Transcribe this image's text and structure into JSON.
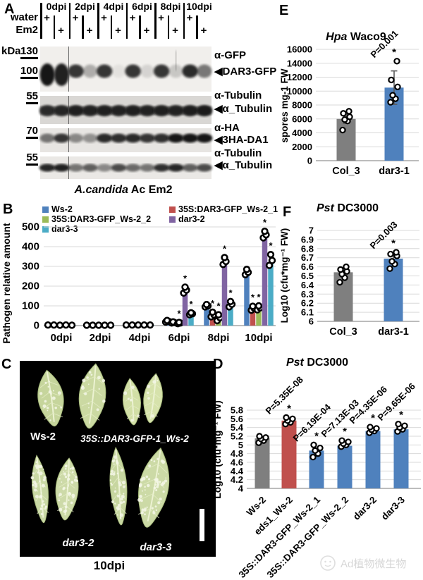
{
  "panelA": {
    "label": "A",
    "rows": [
      "water",
      "Em2"
    ],
    "plus_glyph": "+",
    "kda_unit": "kDa",
    "arrow_glyph": "◀",
    "timepoints": [
      "0dpi",
      "2dpi",
      "4dpi",
      "6dpi",
      "8dpi",
      "10dpi"
    ],
    "blots": [
      {
        "antibody": "α-GFP",
        "band": "DAR3-GFP",
        "kda": [
          "130",
          "100"
        ],
        "lanes": [
          1,
          0.95,
          0.85,
          0.3,
          0.85,
          0.06,
          0.85,
          0.12,
          0.85,
          0.18,
          0.9,
          0.55
        ]
      },
      {
        "antibody": "α-Tubulin",
        "band": "α_Tubulin",
        "kda": [
          "55"
        ],
        "lanes": [
          0.8,
          0.85,
          0.9,
          0.88,
          0.9,
          0.88,
          0.9,
          0.88,
          0.9,
          0.88,
          0.92,
          0.95
        ]
      },
      {
        "antibody": "α-HA",
        "band": "3HA-DA1",
        "kda": [
          "70"
        ],
        "lanes": [
          0.55,
          0.85,
          0.45,
          0.4,
          0.9,
          0.88,
          0.9,
          0.85,
          0.88,
          1,
          1,
          1
        ]
      },
      {
        "antibody": "α-Tubulin",
        "band": "α_Tubulin",
        "kda": [
          "55"
        ],
        "lanes": [
          0.92,
          0.95,
          0.55,
          0.65,
          0.45,
          0.75,
          0.6,
          0.55,
          0.88,
          0.92,
          0.65,
          0.75
        ]
      }
    ]
  },
  "panelB": {
    "label": "B",
    "title_italic": "A.candida",
    "title_rest": " Ac Em2"
  },
  "panelC": {
    "label": "C",
    "groups": [
      {
        "name": "Ws-2"
      },
      {
        "name": "35S::DAR3-GFP-1_Ws-2"
      },
      {
        "name": "dar3-2"
      },
      {
        "name": "dar3-3"
      }
    ],
    "timepoint": "10dpi"
  },
  "panelD": {
    "label": "D",
    "title_italic": "Pst",
    "title_rest": " DC3000"
  },
  "panelE": {
    "label": "E",
    "title_italic": "Hpa",
    "title_rest": " Waco9"
  },
  "panelF": {
    "label": "F",
    "title_italic": "Pst",
    "title_rest": " DC3000"
  },
  "watermark": {
    "text": "Ad植物微生物"
  },
  "colors": {
    "ws2_blue": "#4F81BD",
    "red": "#C0504D",
    "green": "#9BBB59",
    "purple": "#8064A2",
    "teal": "#4BACC6",
    "gray": "#7F7F7F"
  },
  "chart_data": [
    {
      "id": "B",
      "type": "bar",
      "title": "A.candida Ac Em2",
      "ylabel": "Pathogen relative amount",
      "ylim": [
        0,
        500
      ],
      "ytick_step": 100,
      "grid": true,
      "legend_position": "top",
      "categories": [
        "0dpi",
        "2dpi",
        "4dpi",
        "6dpi",
        "8dpi",
        "10dpi"
      ],
      "series": [
        {
          "name": "Ws-2",
          "color": "#4F81BD",
          "values": [
            3,
            2,
            3,
            20,
            97,
            268
          ],
          "points": [
            [
              3
            ],
            [
              2
            ],
            [
              3
            ],
            [
              18,
              22,
              26
            ],
            [
              95,
              100,
              107
            ],
            [
              258,
              270,
              285
            ]
          ],
          "sig": [
            false,
            false,
            false,
            false,
            false,
            false
          ]
        },
        {
          "name": "35S:DAR3-GFP_Ws-2_1",
          "color": "#C0504D",
          "values": [
            3,
            2,
            3,
            15,
            54,
            85
          ],
          "points": [
            [
              3
            ],
            [
              2
            ],
            [
              3
            ],
            [
              13,
              16,
              19
            ],
            [
              45,
              55,
              68
            ],
            [
              78,
              88,
              98
            ]
          ],
          "sig": [
            false,
            false,
            false,
            false,
            true,
            true
          ]
        },
        {
          "name": "35S:DAR3-GFP_Ws-2_2",
          "color": "#9BBB59",
          "values": [
            2,
            2,
            3,
            12,
            35,
            85
          ],
          "points": [
            [
              2
            ],
            [
              2
            ],
            [
              3
            ],
            [
              10,
              13,
              16
            ],
            [
              25,
              40,
              55
            ],
            [
              80,
              90,
              100
            ]
          ],
          "sig": [
            false,
            false,
            false,
            true,
            true,
            true
          ]
        },
        {
          "name": "dar3-2",
          "color": "#8064A2",
          "values": [
            3,
            2,
            3,
            185,
            310,
            455
          ],
          "points": [
            [
              3
            ],
            [
              2
            ],
            [
              3
            ],
            [
              165,
              180,
              195
            ],
            [
              310,
              325,
              345
            ],
            [
              445,
              460,
              478
            ]
          ],
          "sig": [
            false,
            false,
            false,
            true,
            true,
            true
          ]
        },
        {
          "name": "dar3-3",
          "color": "#4BACC6",
          "values": [
            2,
            2,
            3,
            57,
            100,
            313
          ],
          "points": [
            [
              2
            ],
            [
              2
            ],
            [
              3
            ],
            [
              55,
              60,
              65
            ],
            [
              95,
              108,
              122
            ],
            [
              305,
              330,
              360
            ]
          ],
          "sig": [
            false,
            false,
            false,
            true,
            true,
            true
          ]
        }
      ]
    },
    {
      "id": "D",
      "type": "bar",
      "title": "Pst DC3000",
      "ylabel": "Log10 (cfu*mg⁻¹ FW)",
      "ylim": [
        4,
        5.8
      ],
      "ytick_step": 0.2,
      "grid": true,
      "categories": [
        "Ws-2",
        "eds1_Ws-2",
        "35S::DAR3-GFP_Ws-2_1",
        "35S::DAR3-GFP_Ws-2_2",
        "dar3-2",
        "dar3-3"
      ],
      "values": [
        5.15,
        5.56,
        4.87,
        4.98,
        5.32,
        5.36
      ],
      "colors": [
        "#7F7F7F",
        "#C0504D",
        "#4F81BD",
        "#4F81BD",
        "#4F81BD",
        "#4F81BD"
      ],
      "points": [
        [
          5.05,
          5.1,
          5.14,
          5.17,
          5.2
        ],
        [
          5.48,
          5.52,
          5.56,
          5.6,
          5.63
        ],
        [
          4.72,
          4.8,
          4.87,
          4.93,
          5.0
        ],
        [
          4.96,
          5.0,
          5.03,
          5.07,
          5.1
        ],
        [
          5.28,
          5.32,
          5.35,
          5.38,
          5.41
        ],
        [
          5.31,
          5.36,
          5.4,
          5.44,
          5.48
        ]
      ],
      "p_values": [
        null,
        "P=5.35E-08",
        "P=6.19E-04",
        "P=7.13E-03",
        "P=4.35E-06",
        "P=9.65E-06"
      ],
      "sig": [
        false,
        true,
        true,
        true,
        true,
        true
      ]
    },
    {
      "id": "E",
      "type": "bar",
      "title": "Hpa Waco9",
      "ylabel": "spores mg-1 FW",
      "ylim": [
        0,
        16000
      ],
      "ytick_step": 2000,
      "grid": true,
      "categories": [
        "Col_3",
        "dar3-1"
      ],
      "values": [
        6000,
        10500
      ],
      "errors": [
        650,
        2400
      ],
      "colors": [
        "#7F7F7F",
        "#4F81BD"
      ],
      "points": [
        [
          4400,
          5700,
          5900,
          6300,
          6800,
          7100
        ],
        [
          8400,
          8900,
          9400,
          10600,
          11600,
          14300
        ]
      ],
      "p_values": [
        null,
        "P=0.001"
      ],
      "sig": [
        false,
        true
      ]
    },
    {
      "id": "F",
      "type": "bar",
      "title": "Pst DC3000",
      "ylabel": "Log10 (cfu*mg⁻¹ FW)",
      "ylim": [
        6,
        7
      ],
      "ytick_step": 0.1,
      "grid": true,
      "categories": [
        "Col_3",
        "dar3-1"
      ],
      "values": [
        6.54,
        6.69
      ],
      "errors": [
        0.05,
        0.06
      ],
      "colors": [
        "#7F7F7F",
        "#4F81BD"
      ],
      "points": [
        [
          6.43,
          6.48,
          6.52,
          6.55,
          6.57,
          6.6
        ],
        [
          6.58,
          6.63,
          6.66,
          6.72,
          6.74,
          6.76
        ]
      ],
      "p_values": [
        null,
        "P=0.003"
      ],
      "sig": [
        false,
        true
      ]
    }
  ]
}
